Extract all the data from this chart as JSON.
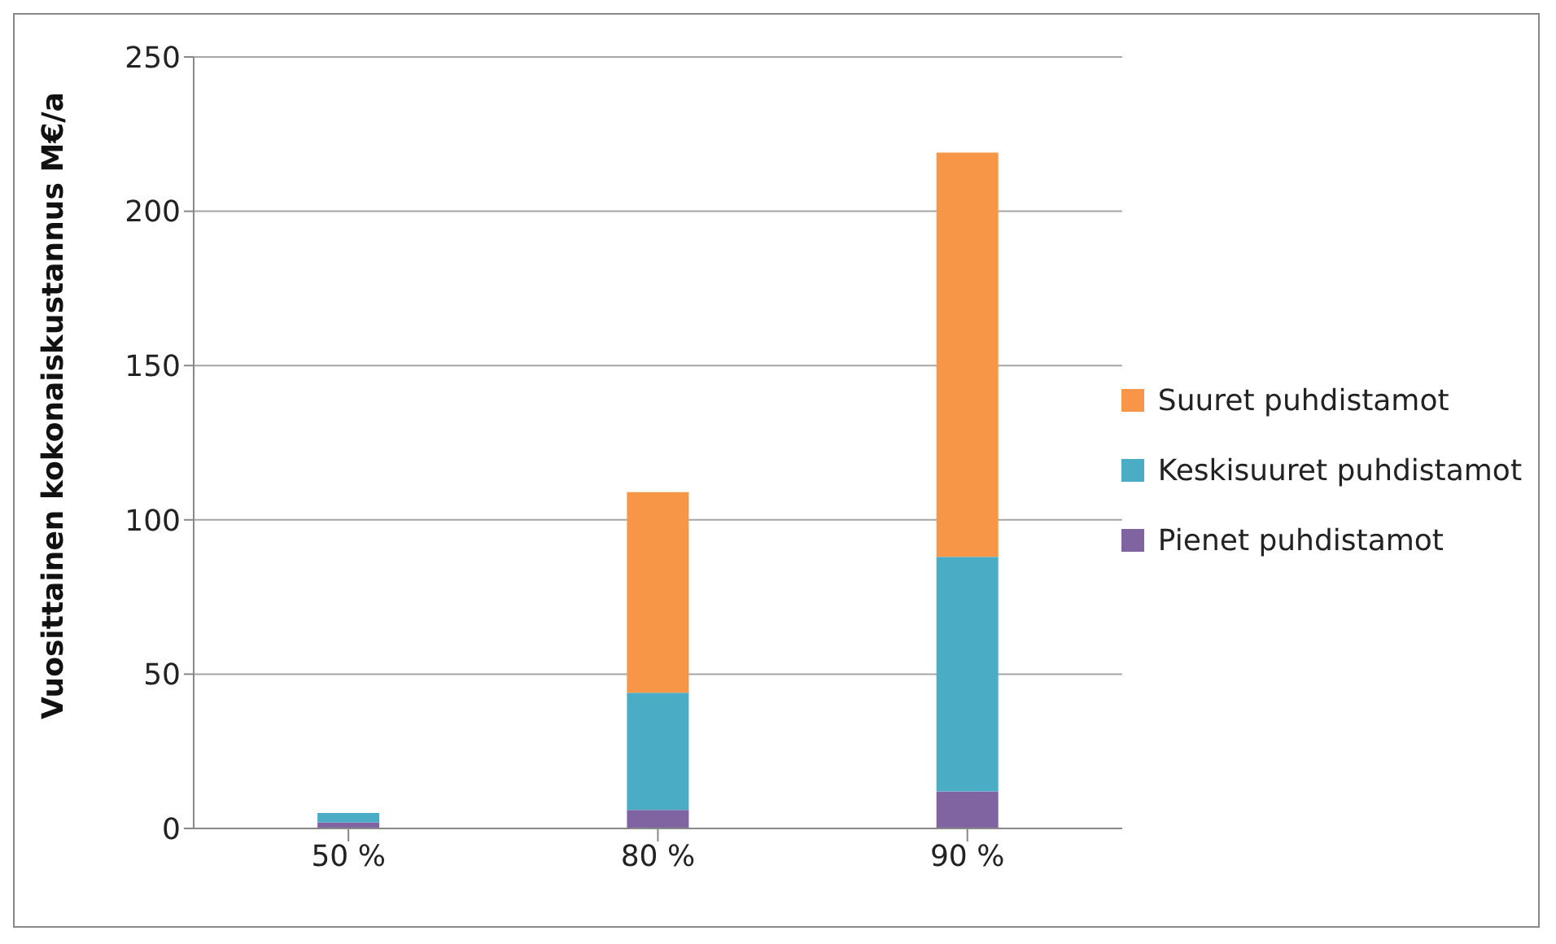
{
  "chart_data": {
    "type": "bar",
    "stacked": true,
    "ylabel": "Vuosittainen kokonaiskustannus M€/a",
    "categories": [
      "50 %",
      "80 %",
      "90 %"
    ],
    "series": [
      {
        "name": "Pienet puhdistamot",
        "color": "#8064a2",
        "values": [
          2,
          6,
          12
        ]
      },
      {
        "name": "Keskisuuret puhdistamot",
        "color": "#4bacc6",
        "values": [
          3,
          38,
          76
        ]
      },
      {
        "name": "Suuret puhdistamot",
        "color": "#f79646",
        "values": [
          0,
          65,
          131
        ]
      }
    ],
    "ylim": [
      0,
      250
    ],
    "yticks": [
      0,
      50,
      100,
      150,
      200,
      250
    ],
    "grid": "y",
    "legend": "right"
  }
}
